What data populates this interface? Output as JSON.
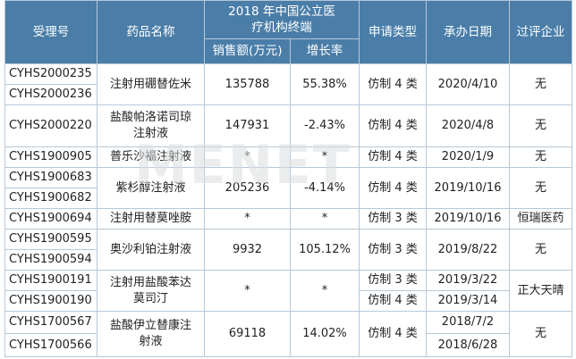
{
  "header": {
    "id": "受理号",
    "drug": "药品名称",
    "market_group": "2018 年中国公立医疗机构终端",
    "sales": "销售额(万元)",
    "growth": "增长率",
    "type": "申请类型",
    "date": "承办日期",
    "passed": "过评企业"
  },
  "groups": [
    {
      "ids": [
        "CYHS2000235",
        "CYHS2000236"
      ],
      "drug": "注射用硼替佐米",
      "sales": "135788",
      "growth": "55.38%",
      "type": "仿制 4 类",
      "dates": [
        "2020/4/10"
      ],
      "passed": "无"
    },
    {
      "ids": [
        "CYHS2000220"
      ],
      "drug": "盐酸帕洛诺司琼注射液",
      "sales": "147931",
      "growth": "-2.43%",
      "type": "仿制 4 类",
      "dates": [
        "2020/4/8"
      ],
      "passed": "无"
    },
    {
      "ids": [
        "CYHS1900905"
      ],
      "drug": "普乐沙福注射液",
      "sales": "*",
      "growth": "*",
      "type": "仿制 4 类",
      "dates": [
        "2020/1/9"
      ],
      "passed": "无"
    },
    {
      "ids": [
        "CYHS1900683",
        "CYHS1900682"
      ],
      "drug": "紫杉醇注射液",
      "sales": "205236",
      "growth": "-4.14%",
      "type": "仿制 4 类",
      "dates": [
        "2019/10/16"
      ],
      "passed": "无"
    },
    {
      "ids": [
        "CYHS1900694"
      ],
      "drug": "注射用替莫唑胺",
      "sales": "*",
      "growth": "*",
      "type": "仿制 3 类",
      "dates": [
        "2019/10/16"
      ],
      "passed": "恒瑞医药"
    },
    {
      "ids": [
        "CYHS1900595",
        "CYHS1900594"
      ],
      "drug": "奥沙利铂注射液",
      "sales": "9932",
      "growth": "105.12%",
      "type": "仿制 3 类",
      "dates": [
        "2019/8/22"
      ],
      "passed": "无"
    },
    {
      "ids": [
        "CYHS1900191",
        "CYHS1900190"
      ],
      "drug": "注射用盐酸苯达莫司汀",
      "sales": "*",
      "growth": "*",
      "types": [
        "仿制 3 类",
        "仿制 4 类"
      ],
      "dates": [
        "2019/3/22",
        "2019/3/14"
      ],
      "passed": "正大天晴"
    },
    {
      "ids": [
        "CYHS1700567",
        "CYHS1700566"
      ],
      "drug": "盐酸伊立替康注射液",
      "sales": "69118",
      "growth": "14.02%",
      "type": "仿制 4 类",
      "dates": [
        "2018/7/2",
        "2018/6/28"
      ],
      "passed": "无"
    }
  ],
  "watermark": "MENET"
}
